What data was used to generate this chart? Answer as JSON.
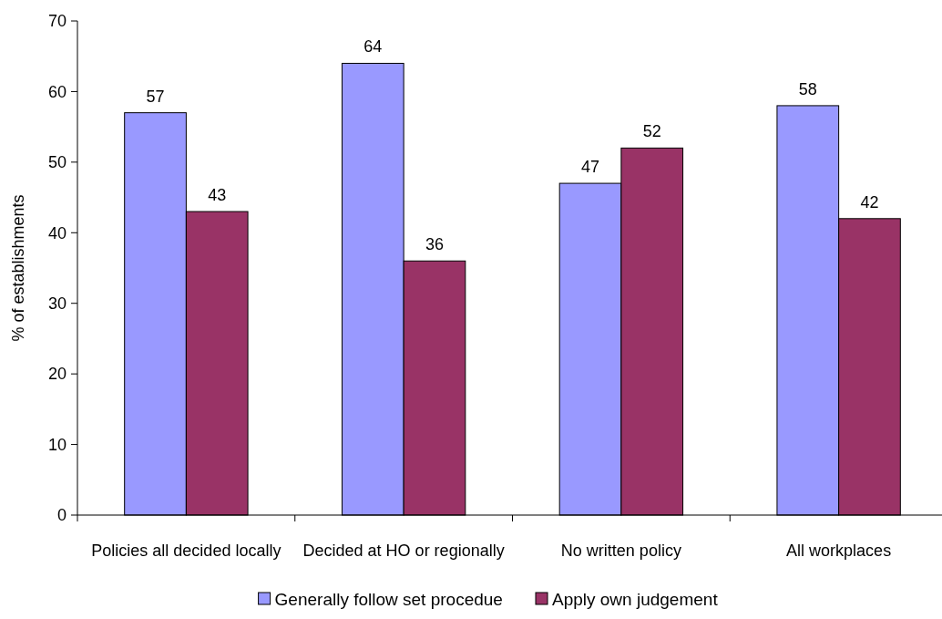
{
  "chart_data": {
    "type": "bar",
    "ylabel": "% of establishments",
    "categories": [
      "Policies all decided locally",
      "Decided at HO or regionally",
      "No written policy",
      "All workplaces"
    ],
    "series": [
      {
        "name": "Generally follow set procedue",
        "color": "#9999ff",
        "values": [
          57,
          64,
          47,
          58
        ]
      },
      {
        "name": "Apply own judgement",
        "color": "#993366",
        "values": [
          43,
          36,
          52,
          42
        ]
      }
    ],
    "ylim": [
      0,
      70
    ],
    "yticks": [
      0,
      10,
      20,
      30,
      40,
      50,
      60,
      70
    ],
    "data_labels": true,
    "legend": "bottom",
    "grid": false
  }
}
